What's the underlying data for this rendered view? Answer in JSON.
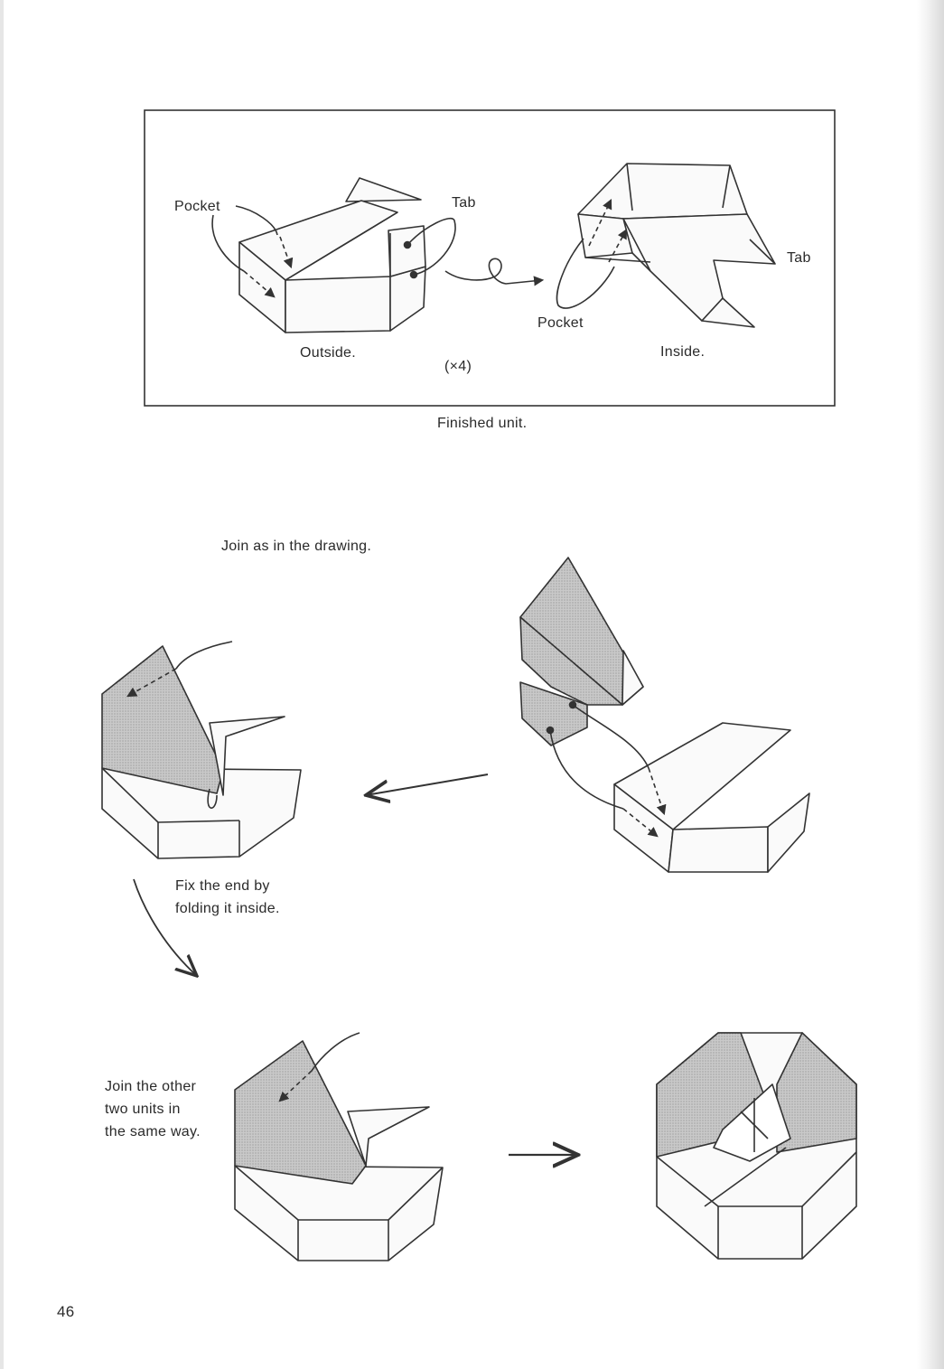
{
  "unit_box": {
    "pocket_left": "Pocket",
    "tab_left": "Tab",
    "pocket_right": "Pocket",
    "tab_right": "Tab",
    "outside": "Outside.",
    "inside": "Inside.",
    "times": "(×4)"
  },
  "caption_unit": "Finished unit.",
  "instruction_join": "Join as in the drawing.",
  "instruction_fix": "Fix the end by\nfolding it inside.",
  "instruction_other": "Join the other\ntwo units in\nthe same way.",
  "page_number": "46"
}
